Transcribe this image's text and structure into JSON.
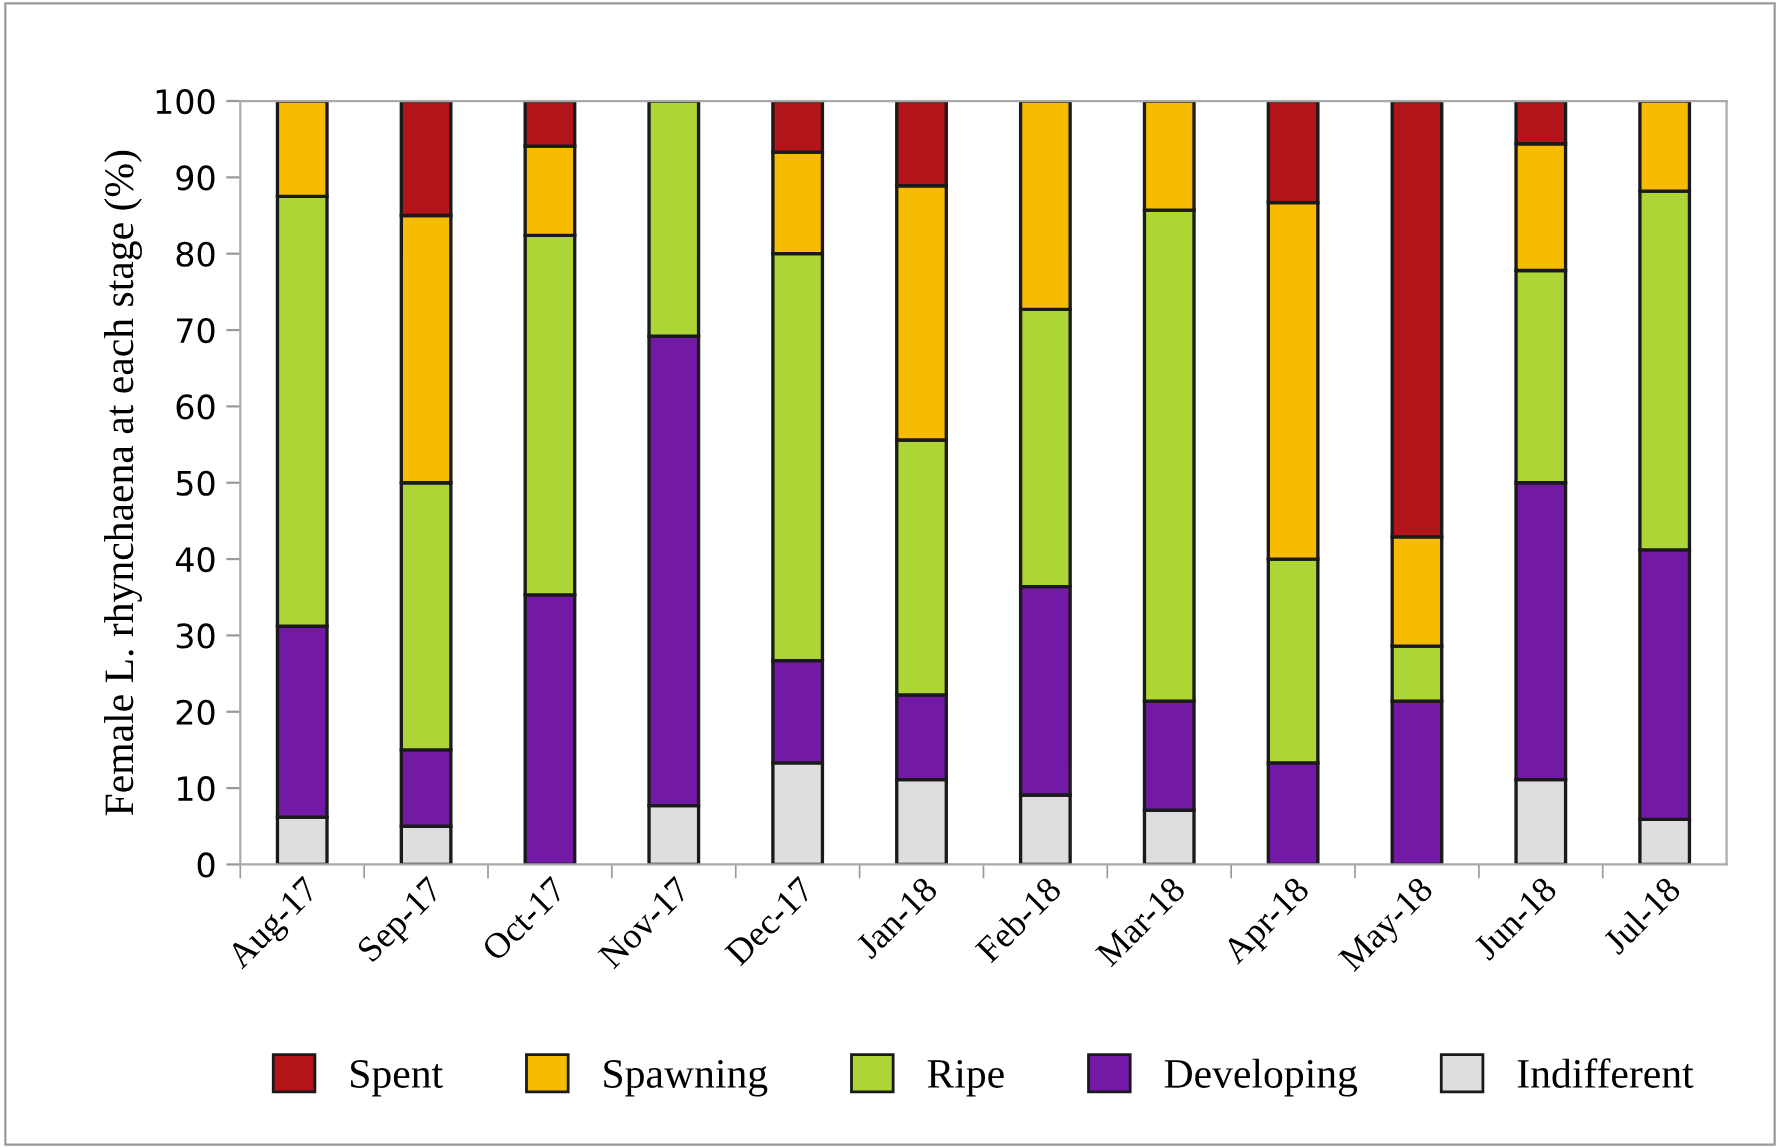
{
  "chart_data": {
    "type": "bar",
    "stacked": true,
    "ylabel": "Female L. rhynchaena at each stage (%)",
    "categories": [
      "Aug-17",
      "Sep-17",
      "Oct-17",
      "Nov-17",
      "Dec-17",
      "Jan-18",
      "Feb-18",
      "Mar-18",
      "Apr-18",
      "May-18",
      "Jun-18",
      "Jul-18"
    ],
    "series": [
      {
        "name": "Indifferent",
        "color": "#dedede",
        "values": [
          6.2,
          5,
          0,
          7.7,
          13.3,
          11.1,
          9.1,
          7.1,
          0,
          0,
          11.1,
          5.9
        ]
      },
      {
        "name": "Developing",
        "color": "#7219a6",
        "values": [
          25.0,
          10,
          35.3,
          61.5,
          13.4,
          11.1,
          27.3,
          14.3,
          13.3,
          21.4,
          38.9,
          35.3
        ]
      },
      {
        "name": "Ripe",
        "color": "#add535",
        "values": [
          56.3,
          35,
          47.1,
          30.8,
          53.3,
          33.4,
          36.3,
          64.3,
          26.7,
          7.2,
          27.8,
          47.0
        ]
      },
      {
        "name": "Spawning",
        "color": "#f7bb00",
        "values": [
          12.5,
          35,
          11.7,
          0,
          13.3,
          33.3,
          27.3,
          14.3,
          46.7,
          14.3,
          16.6,
          11.8
        ]
      },
      {
        "name": "Spent",
        "color": "#b11419",
        "values": [
          0,
          15,
          5.9,
          0,
          6.7,
          11.1,
          0,
          0,
          13.3,
          57.1,
          5.6,
          0
        ]
      }
    ],
    "ylim": [
      0,
      100
    ],
    "yticks": [
      0,
      10,
      20,
      30,
      40,
      50,
      60,
      70,
      80,
      90,
      100
    ],
    "grid": false,
    "legend": "bottom"
  }
}
